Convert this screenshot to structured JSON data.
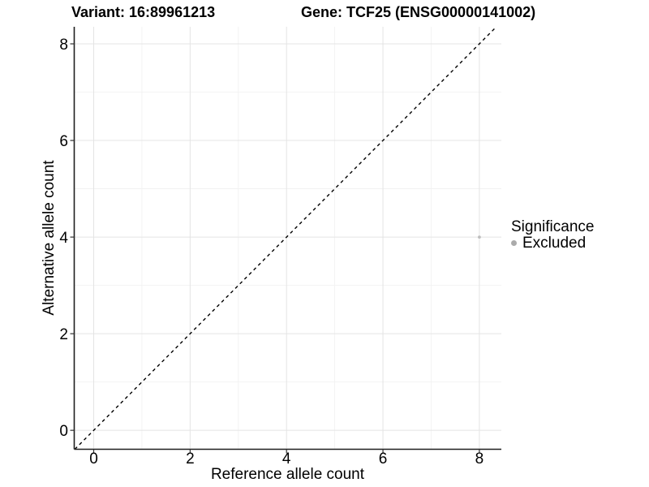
{
  "chart_data": {
    "type": "scatter",
    "title_variant": "Variant: 16:89961213",
    "title_gene": "Gene: TCF25 (ENSG00000141002)",
    "xlabel": "Reference allele count",
    "ylabel": "Alternative allele count",
    "xlim": [
      -0.404,
      8.456
    ],
    "ylim": [
      -0.392,
      8.353
    ],
    "x_ticks": [
      0,
      2,
      4,
      6,
      8
    ],
    "y_ticks": [
      0,
      2,
      4,
      6,
      8
    ],
    "x_minor_ticks": [
      1,
      3,
      5,
      7
    ],
    "y_minor_ticks": [
      1,
      3,
      5,
      7
    ],
    "grid": "major+minor",
    "points": [
      {
        "x": 8,
        "y": 4,
        "series": "Excluded"
      }
    ],
    "reference_line": {
      "type": "identity y=x",
      "style": "dashed",
      "color": "#000000"
    },
    "legend": {
      "title": "Significance",
      "position": "right",
      "items": [
        {
          "label": "Excluded",
          "color": "#ababab"
        }
      ]
    }
  },
  "colors": {
    "background": "#ffffff",
    "point": "#bdbdbd",
    "legend_key": "#ababab",
    "grid_major": "#e4e4e4",
    "grid_minor": "#f1f1f1",
    "axis_line": "#1f1f1f",
    "tick_mark": "#333333",
    "text": "#000000"
  }
}
